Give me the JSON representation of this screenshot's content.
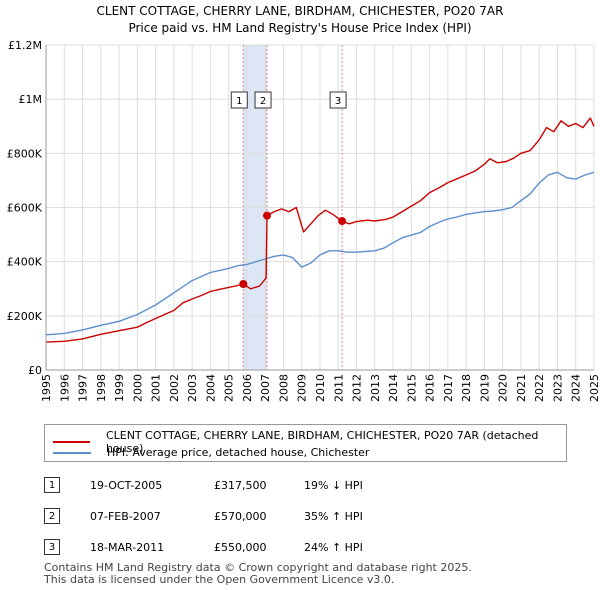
{
  "header": {
    "title": "CLENT COTTAGE, CHERRY LANE, BIRDHAM, CHICHESTER, PO20 7AR",
    "subtitle": "Price paid vs. HM Land Registry's House Price Index (HPI)"
  },
  "colors": {
    "property": "#cc0000",
    "hpi": "#5b8fcc",
    "shade": "#dde6f5",
    "grid": "#dddddd",
    "marker_line": "#e88888"
  },
  "chart_data": {
    "type": "line",
    "title": "Price paid vs. HM Land Registry's House Price Index (HPI)",
    "xlabel": "",
    "ylabel": "",
    "xlim": [
      1995,
      2025
    ],
    "ylim": [
      0,
      1200000
    ],
    "yticks": [
      {
        "value": 0,
        "label": "£0"
      },
      {
        "value": 200000,
        "label": "£200K"
      },
      {
        "value": 400000,
        "label": "£400K"
      },
      {
        "value": 600000,
        "label": "£600K"
      },
      {
        "value": 800000,
        "label": "£800K"
      },
      {
        "value": 1000000,
        "label": "£1M"
      },
      {
        "value": 1200000,
        "label": "£1.2M"
      }
    ],
    "xticks": [
      "1995",
      "1996",
      "1997",
      "1998",
      "1999",
      "2000",
      "2001",
      "2002",
      "2003",
      "2004",
      "2005",
      "2006",
      "2007",
      "2008",
      "2009",
      "2010",
      "2011",
      "2012",
      "2013",
      "2014",
      "2015",
      "2016",
      "2017",
      "2018",
      "2019",
      "2020",
      "2021",
      "2022",
      "2023",
      "2024",
      "2025"
    ],
    "grid": true,
    "series": [
      {
        "name": "CLENT COTTAGE, CHERRY LANE, BIRDHAM, CHICHESTER, PO20 7AR (detached house)",
        "color": "#cc0000",
        "points": [
          [
            1995.0,
            103000
          ],
          [
            1996.0,
            106000
          ],
          [
            1997.0,
            115000
          ],
          [
            1998.0,
            132000
          ],
          [
            1999.0,
            145000
          ],
          [
            2000.0,
            158000
          ],
          [
            2000.5,
            175000
          ],
          [
            2001.0,
            190000
          ],
          [
            2002.0,
            220000
          ],
          [
            2002.5,
            248000
          ],
          [
            2003.0,
            262000
          ],
          [
            2003.5,
            275000
          ],
          [
            2004.0,
            290000
          ],
          [
            2004.5,
            298000
          ],
          [
            2005.0,
            305000
          ],
          [
            2005.5,
            312000
          ],
          [
            2005.8,
            317500
          ],
          [
            2006.2,
            300000
          ],
          [
            2006.7,
            310000
          ],
          [
            2007.05,
            340000
          ],
          [
            2007.1,
            570000
          ],
          [
            2007.5,
            585000
          ],
          [
            2007.9,
            595000
          ],
          [
            2008.3,
            585000
          ],
          [
            2008.7,
            600000
          ],
          [
            2009.1,
            510000
          ],
          [
            2009.5,
            540000
          ],
          [
            2009.9,
            570000
          ],
          [
            2010.3,
            590000
          ],
          [
            2010.7,
            575000
          ],
          [
            2011.2,
            550000
          ],
          [
            2011.6,
            540000
          ],
          [
            2012.0,
            548000
          ],
          [
            2012.6,
            553000
          ],
          [
            2013.0,
            550000
          ],
          [
            2013.6,
            556000
          ],
          [
            2014.0,
            565000
          ],
          [
            2014.5,
            585000
          ],
          [
            2015.0,
            605000
          ],
          [
            2015.5,
            625000
          ],
          [
            2016.0,
            655000
          ],
          [
            2016.5,
            672000
          ],
          [
            2017.0,
            692000
          ],
          [
            2017.5,
            706000
          ],
          [
            2018.0,
            720000
          ],
          [
            2018.5,
            735000
          ],
          [
            2019.0,
            760000
          ],
          [
            2019.3,
            780000
          ],
          [
            2019.7,
            765000
          ],
          [
            2020.2,
            770000
          ],
          [
            2020.6,
            782000
          ],
          [
            2021.0,
            800000
          ],
          [
            2021.5,
            810000
          ],
          [
            2022.0,
            850000
          ],
          [
            2022.4,
            895000
          ],
          [
            2022.8,
            880000
          ],
          [
            2023.2,
            920000
          ],
          [
            2023.6,
            900000
          ],
          [
            2024.0,
            910000
          ],
          [
            2024.4,
            895000
          ],
          [
            2024.8,
            930000
          ],
          [
            2025.0,
            900000
          ]
        ]
      },
      {
        "name": "HPI: Average price, detached house, Chichester",
        "color": "#5b8fcc",
        "points": [
          [
            1995.0,
            130000
          ],
          [
            1996.0,
            135000
          ],
          [
            1997.0,
            148000
          ],
          [
            1998.0,
            165000
          ],
          [
            1999.0,
            180000
          ],
          [
            2000.0,
            205000
          ],
          [
            2001.0,
            240000
          ],
          [
            2002.0,
            285000
          ],
          [
            2003.0,
            330000
          ],
          [
            2004.0,
            360000
          ],
          [
            2005.0,
            375000
          ],
          [
            2005.5,
            385000
          ],
          [
            2006.0,
            390000
          ],
          [
            2006.5,
            400000
          ],
          [
            2007.0,
            410000
          ],
          [
            2007.5,
            420000
          ],
          [
            2008.0,
            425000
          ],
          [
            2008.5,
            415000
          ],
          [
            2009.0,
            380000
          ],
          [
            2009.5,
            395000
          ],
          [
            2010.0,
            425000
          ],
          [
            2010.5,
            440000
          ],
          [
            2011.0,
            440000
          ],
          [
            2011.5,
            435000
          ],
          [
            2012.0,
            435000
          ],
          [
            2012.5,
            438000
          ],
          [
            2013.0,
            440000
          ],
          [
            2013.5,
            450000
          ],
          [
            2014.0,
            470000
          ],
          [
            2014.5,
            488000
          ],
          [
            2015.0,
            498000
          ],
          [
            2015.5,
            508000
          ],
          [
            2016.0,
            530000
          ],
          [
            2016.5,
            545000
          ],
          [
            2017.0,
            558000
          ],
          [
            2017.5,
            565000
          ],
          [
            2018.0,
            575000
          ],
          [
            2018.5,
            580000
          ],
          [
            2019.0,
            585000
          ],
          [
            2019.5,
            587000
          ],
          [
            2020.0,
            592000
          ],
          [
            2020.5,
            600000
          ],
          [
            2021.0,
            625000
          ],
          [
            2021.5,
            650000
          ],
          [
            2022.0,
            690000
          ],
          [
            2022.5,
            720000
          ],
          [
            2023.0,
            730000
          ],
          [
            2023.5,
            710000
          ],
          [
            2024.0,
            705000
          ],
          [
            2024.5,
            720000
          ],
          [
            2025.0,
            730000
          ]
        ]
      }
    ],
    "sales": [
      {
        "num": "1",
        "year": 2005.8,
        "price": 317500
      },
      {
        "num": "2",
        "year": 2007.1,
        "price": 570000
      },
      {
        "num": "3",
        "year": 2011.21,
        "price": 550000
      }
    ],
    "shaded_periods": [
      [
        2005.8,
        2007.1
      ]
    ]
  },
  "legend": {
    "property": "CLENT COTTAGE, CHERRY LANE, BIRDHAM, CHICHESTER, PO20 7AR (detached house)",
    "hpi": "HPI: Average price, detached house, Chichester"
  },
  "transactions": [
    {
      "num": "1",
      "date": "19-OCT-2005",
      "price": "£317,500",
      "hpi": "19% ↓ HPI"
    },
    {
      "num": "2",
      "date": "07-FEB-2007",
      "price": "£570,000",
      "hpi": "35% ↑ HPI"
    },
    {
      "num": "3",
      "date": "18-MAR-2011",
      "price": "£550,000",
      "hpi": "24% ↑ HPI"
    }
  ],
  "footer": {
    "line1": "Contains HM Land Registry data © Crown copyright and database right 2025.",
    "line2": "This data is licensed under the Open Government Licence v3.0."
  }
}
